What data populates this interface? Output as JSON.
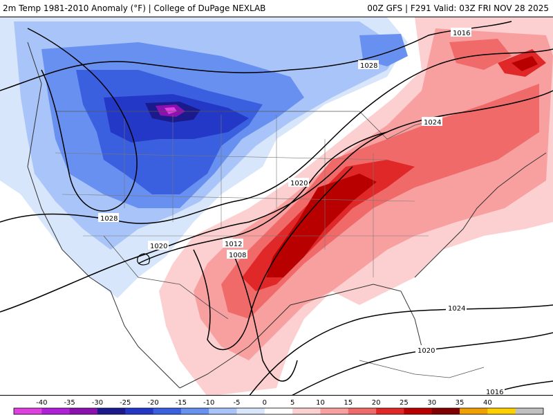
{
  "header": {
    "title": "2m Temp 1981-2010 Anomaly (°F) | College of DuPage NEXLAB",
    "run_info": "00Z GFS | F291 Valid: 03Z FRI NOV 28 2025"
  },
  "isobar_labels": [
    "1016",
    "1028",
    "1024",
    "1020",
    "1028",
    "1012",
    "1008",
    "1020",
    "1024",
    "1020",
    "1016"
  ],
  "legend": {
    "ticks": [
      "-40",
      "-35",
      "-30",
      "-25",
      "-20",
      "-15",
      "-10",
      "-5",
      "0",
      "5",
      "10",
      "15",
      "20",
      "25",
      "30",
      "35",
      "40"
    ],
    "colors": [
      "#e040e0",
      "#b020d8",
      "#8a10b0",
      "#1a1a8c",
      "#2438c8",
      "#3a60e0",
      "#6890f0",
      "#a8c4f8",
      "#d8e6fc",
      "#ffffff",
      "#fcd0d0",
      "#f8a0a0",
      "#f06a6a",
      "#e02828",
      "#b80000",
      "#800000",
      "#f0a000",
      "#ffd000",
      "#c0c0c0"
    ]
  }
}
